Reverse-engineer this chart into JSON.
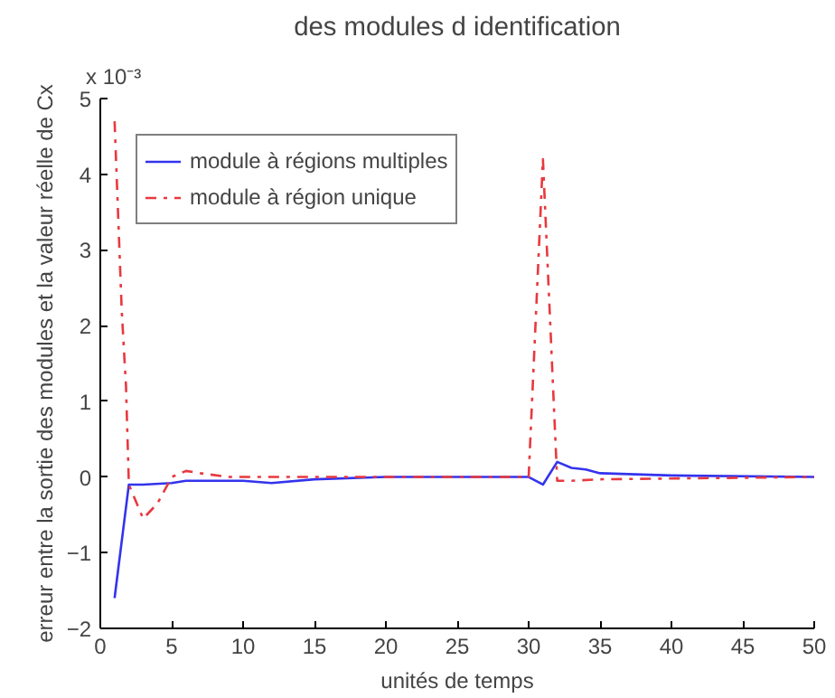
{
  "chart_data": {
    "type": "line",
    "title": "des modules d identification",
    "xlabel": "unités de temps",
    "ylabel": "erreur entre la sortie des modules et la valeur réelle de Cx",
    "annotations": [
      "x 10⁻³"
    ],
    "xlim": [
      0,
      50
    ],
    "xticks": [
      0,
      5,
      10,
      15,
      20,
      25,
      30,
      35,
      40,
      45,
      50
    ],
    "ylim": [
      -2,
      5
    ],
    "yticks": [
      -2,
      -1,
      0,
      1,
      2,
      3,
      4,
      5
    ],
    "grid": false,
    "legend": "top left",
    "series": [
      {
        "name": "module à régions multiples",
        "color": "#3333ee",
        "line_style": "solid",
        "x": [
          1,
          2,
          3,
          5,
          6,
          10,
          12,
          15,
          20,
          30,
          31,
          32,
          33,
          34,
          35,
          40,
          50
        ],
        "values": [
          -1.6,
          -0.1,
          -0.1,
          -0.08,
          -0.05,
          -0.05,
          -0.08,
          -0.03,
          0,
          0,
          -0.1,
          0.2,
          0.12,
          0.1,
          0.05,
          0.02,
          0
        ]
      },
      {
        "name": "module à région unique",
        "color": "#e8393e",
        "line_style": "dashdot",
        "x": [
          1,
          1.5,
          1.8,
          2,
          3,
          4,
          5,
          6,
          7,
          9,
          20,
          30,
          31,
          32,
          33,
          35,
          40,
          50
        ],
        "values": [
          4.7,
          2.2,
          1.2,
          -0.1,
          -0.55,
          -0.35,
          0,
          0.08,
          0.05,
          0,
          0,
          0,
          4.2,
          -0.05,
          -0.05,
          -0.03,
          -0.02,
          0
        ]
      }
    ]
  }
}
